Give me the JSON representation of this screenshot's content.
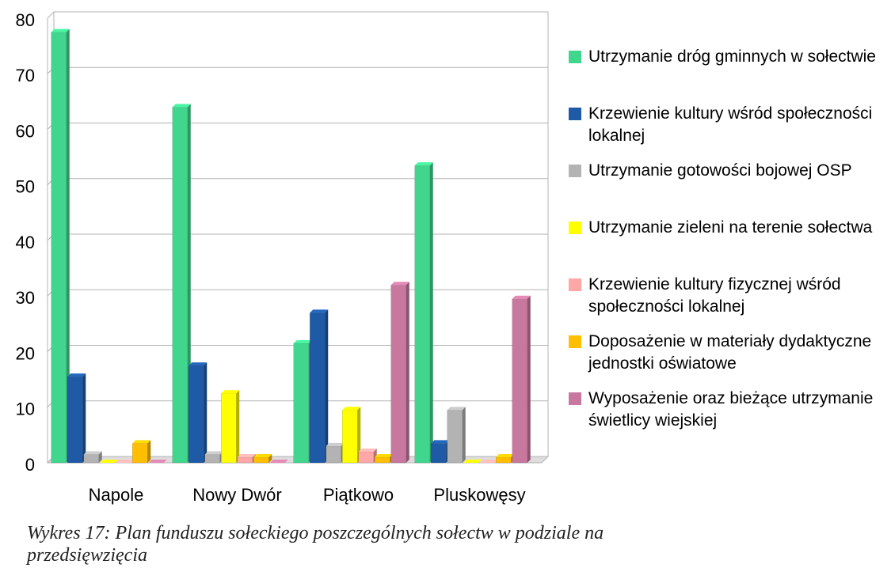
{
  "chart_data": {
    "type": "bar",
    "categories": [
      "Napole",
      "Nowy Dwór",
      "Piątkowo",
      "Pluskowęsy"
    ],
    "series": [
      {
        "name": "Utrzymanie dróg gminnych w sołectwie",
        "color": "#40d68e",
        "values": [
          77.5,
          64,
          21.5,
          53.5
        ]
      },
      {
        "name": "Krzewienie kultury wśród społeczności lokalnej",
        "color": "#1f5aa6",
        "values": [
          15.5,
          17.5,
          27,
          3.5
        ]
      },
      {
        "name": "Utrzymanie gotowości bojowej OSP",
        "color": "#b3b3b3",
        "values": [
          1.5,
          1.5,
          3,
          9.5
        ]
      },
      {
        "name": "Utrzymanie zieleni na terenie sołectwa",
        "color": "#ffff00",
        "values": [
          0,
          12.5,
          9.5,
          0
        ]
      },
      {
        "name": "Krzewienie kultury fizycznej wśród społeczności lokalnej",
        "color": "#ffa6a6",
        "values": [
          0,
          1,
          2,
          0
        ]
      },
      {
        "name": "Doposażenie w materiały dydaktyczne jednostki oświatowe",
        "color": "#ffbf00",
        "values": [
          3.5,
          1,
          1,
          1
        ]
      },
      {
        "name": "Wyposażenie oraz bieżące utrzymanie świetlicy wiejskiej",
        "color": "#c8789f",
        "values": [
          0,
          0,
          32,
          29.5
        ]
      }
    ],
    "ylim": [
      0,
      80
    ],
    "yticks": [
      0,
      10,
      20,
      30,
      40,
      50,
      60,
      70,
      80
    ],
    "grid": true,
    "legend": "right"
  },
  "caption": "Wykres 17: Plan funduszu sołeckiego poszczególnych sołectw w podziale na przedsięwzięcia"
}
